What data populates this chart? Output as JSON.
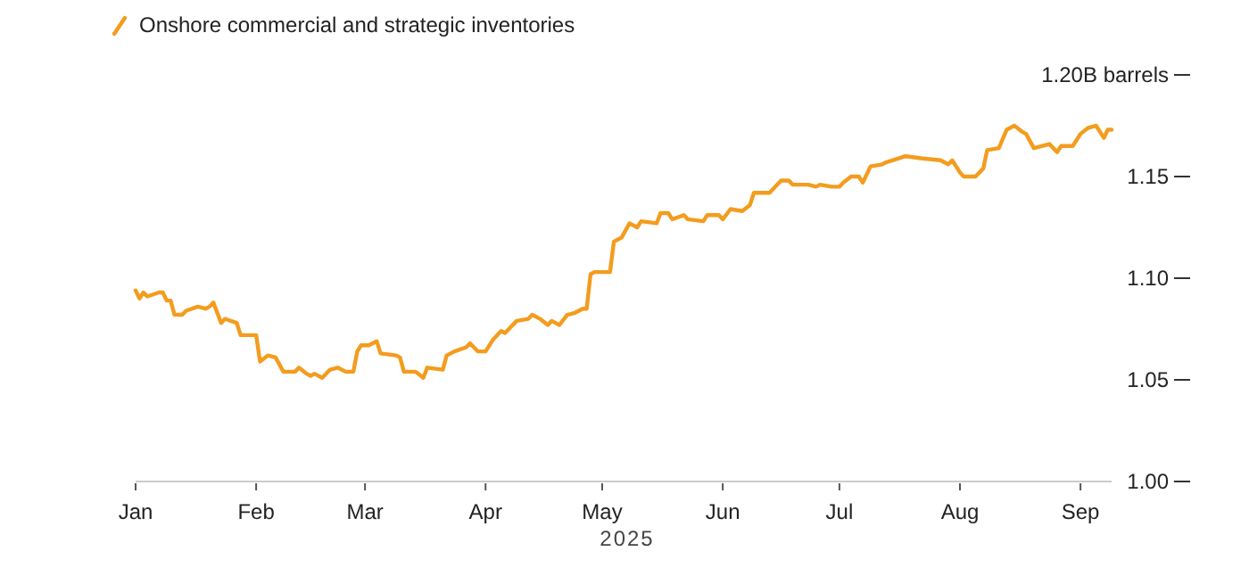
{
  "chart_data": {
    "type": "line",
    "xlabel": "2025",
    "legend": "top left",
    "grid": false,
    "marker": "none",
    "line_style": "solid",
    "xlim": [
      "2025-01-01",
      "2025-09-09"
    ],
    "xticks": [
      {
        "value": "2025-01-01",
        "label": "Jan"
      },
      {
        "value": "2025-02-01",
        "label": "Feb"
      },
      {
        "value": "2025-03-01",
        "label": "Mar"
      },
      {
        "value": "2025-04-01",
        "label": "Apr"
      },
      {
        "value": "2025-05-01",
        "label": "May"
      },
      {
        "value": "2025-06-01",
        "label": "Jun"
      },
      {
        "value": "2025-07-01",
        "label": "Jul"
      },
      {
        "value": "2025-08-01",
        "label": "Aug"
      },
      {
        "value": "2025-09-01",
        "label": "Sep"
      }
    ],
    "ylim": [
      1.0,
      1.2
    ],
    "yticks": [
      {
        "value": 1.0,
        "label": "1.00"
      },
      {
        "value": 1.05,
        "label": "1.05"
      },
      {
        "value": 1.1,
        "label": "1.10"
      },
      {
        "value": 1.15,
        "label": "1.15"
      },
      {
        "value": 1.2,
        "label": "1.20B barrels"
      }
    ],
    "series": [
      {
        "name": "Onshore commercial and strategic inventories",
        "color": "#f39c1e",
        "x": [
          "2025-01-01",
          "2025-01-02",
          "2025-01-03",
          "2025-01-04",
          "2025-01-07",
          "2025-01-08",
          "2025-01-09",
          "2025-01-10",
          "2025-01-11",
          "2025-01-13",
          "2025-01-14",
          "2025-01-17",
          "2025-01-19",
          "2025-01-20",
          "2025-01-21",
          "2025-01-23",
          "2025-01-24",
          "2025-01-27",
          "2025-01-28",
          "2025-02-01",
          "2025-02-02",
          "2025-02-04",
          "2025-02-06",
          "2025-02-08",
          "2025-02-11",
          "2025-02-12",
          "2025-02-14",
          "2025-02-15",
          "2025-02-16",
          "2025-02-18",
          "2025-02-20",
          "2025-02-22",
          "2025-02-24",
          "2025-02-26",
          "2025-02-27",
          "2025-02-28",
          "2025-03-02",
          "2025-03-04",
          "2025-03-05",
          "2025-03-09",
          "2025-03-10",
          "2025-03-11",
          "2025-03-14",
          "2025-03-16",
          "2025-03-17",
          "2025-03-21",
          "2025-03-22",
          "2025-03-24",
          "2025-03-27",
          "2025-03-28",
          "2025-03-30",
          "2025-04-01",
          "2025-04-03",
          "2025-04-05",
          "2025-04-06",
          "2025-04-09",
          "2025-04-12",
          "2025-04-13",
          "2025-04-15",
          "2025-04-17",
          "2025-04-18",
          "2025-04-20",
          "2025-04-22",
          "2025-04-24",
          "2025-04-26",
          "2025-04-27",
          "2025-04-28",
          "2025-04-29",
          "2025-05-03",
          "2025-05-04",
          "2025-05-06",
          "2025-05-08",
          "2025-05-10",
          "2025-05-11",
          "2025-05-15",
          "2025-05-16",
          "2025-05-18",
          "2025-05-19",
          "2025-05-22",
          "2025-05-23",
          "2025-05-27",
          "2025-05-28",
          "2025-05-31",
          "2025-06-01",
          "2025-06-03",
          "2025-06-06",
          "2025-06-08",
          "2025-06-09",
          "2025-06-13",
          "2025-06-14",
          "2025-06-16",
          "2025-06-18",
          "2025-06-19",
          "2025-06-23",
          "2025-06-25",
          "2025-06-26",
          "2025-06-29",
          "2025-07-01",
          "2025-07-02",
          "2025-07-04",
          "2025-07-06",
          "2025-07-07",
          "2025-07-09",
          "2025-07-12",
          "2025-07-13",
          "2025-07-18",
          "2025-07-22",
          "2025-07-27",
          "2025-07-29",
          "2025-07-30",
          "2025-08-01",
          "2025-08-02",
          "2025-08-05",
          "2025-08-07",
          "2025-08-08",
          "2025-08-11",
          "2025-08-13",
          "2025-08-15",
          "2025-08-17",
          "2025-08-18",
          "2025-08-20",
          "2025-08-24",
          "2025-08-26",
          "2025-08-27",
          "2025-08-30",
          "2025-09-01",
          "2025-09-03",
          "2025-09-05",
          "2025-09-07",
          "2025-09-08",
          "2025-09-09"
        ],
        "values": [
          1.094,
          1.09,
          1.093,
          1.091,
          1.093,
          1.093,
          1.089,
          1.089,
          1.082,
          1.082,
          1.084,
          1.086,
          1.085,
          1.086,
          1.088,
          1.078,
          1.08,
          1.078,
          1.072,
          1.072,
          1.059,
          1.062,
          1.061,
          1.054,
          1.054,
          1.056,
          1.053,
          1.052,
          1.053,
          1.051,
          1.055,
          1.056,
          1.054,
          1.054,
          1.064,
          1.067,
          1.067,
          1.069,
          1.063,
          1.062,
          1.061,
          1.054,
          1.054,
          1.051,
          1.056,
          1.055,
          1.062,
          1.064,
          1.066,
          1.068,
          1.064,
          1.064,
          1.07,
          1.074,
          1.073,
          1.079,
          1.08,
          1.082,
          1.08,
          1.077,
          1.079,
          1.077,
          1.082,
          1.083,
          1.085,
          1.085,
          1.102,
          1.103,
          1.103,
          1.118,
          1.12,
          1.127,
          1.125,
          1.128,
          1.127,
          1.132,
          1.132,
          1.129,
          1.131,
          1.129,
          1.128,
          1.131,
          1.131,
          1.129,
          1.134,
          1.133,
          1.136,
          1.142,
          1.142,
          1.144,
          1.148,
          1.148,
          1.146,
          1.146,
          1.145,
          1.146,
          1.145,
          1.145,
          1.147,
          1.15,
          1.15,
          1.147,
          1.155,
          1.156,
          1.157,
          1.16,
          1.159,
          1.158,
          1.156,
          1.158,
          1.152,
          1.15,
          1.15,
          1.154,
          1.163,
          1.164,
          1.173,
          1.175,
          1.172,
          1.171,
          1.164,
          1.166,
          1.162,
          1.165,
          1.165,
          1.171,
          1.174,
          1.175,
          1.169,
          1.173,
          1.173
        ]
      }
    ]
  }
}
